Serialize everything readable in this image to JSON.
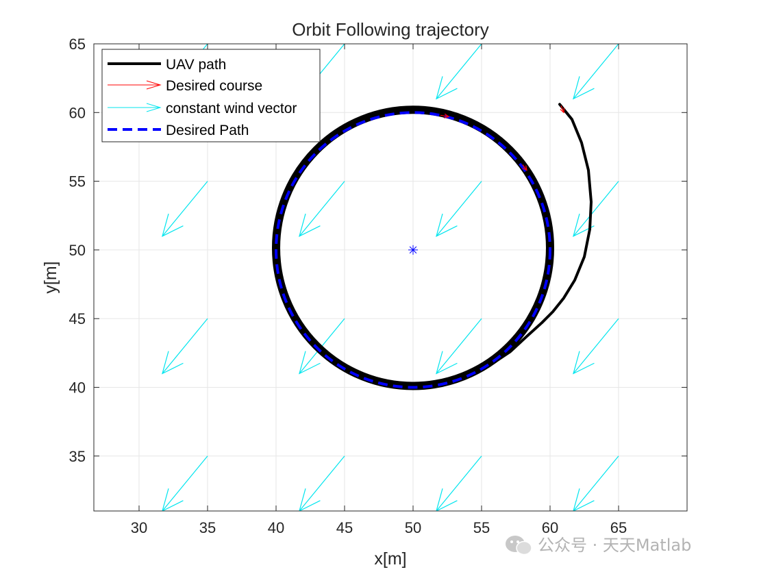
{
  "chart_data": {
    "type": "line",
    "title": "Orbit Following trajectory",
    "xlabel": "x[m]",
    "ylabel": "y[m]",
    "xlim": [
      26.7,
      70
    ],
    "ylim": [
      31,
      65
    ],
    "xticks": [
      "30",
      "35",
      "40",
      "45",
      "50",
      "55",
      "60",
      "65"
    ],
    "yticks": [
      "35",
      "40",
      "45",
      "50",
      "55",
      "60",
      "65"
    ],
    "grid": true,
    "legend_placement": "top-left",
    "legend": [
      "UAV path",
      "Desired course",
      "constant wind vector",
      "Desired Path"
    ],
    "colors": {
      "uav_path": "#000000",
      "desired_course": "#ff0000",
      "wind": "#00e5ee",
      "desired_path": "#0000ff",
      "center": "#0000ff"
    },
    "desired_path": {
      "center": [
        50,
        50
      ],
      "radius": 10
    },
    "orbit_center": [
      50,
      50
    ],
    "uav_path_approach": [
      [
        60.7,
        60.6
      ],
      [
        61.6,
        59.5
      ],
      [
        62.3,
        57.8
      ],
      [
        62.8,
        55.8
      ],
      [
        63.0,
        53.5
      ],
      [
        62.9,
        51.5
      ],
      [
        62.5,
        49.5
      ],
      [
        61.8,
        47.8
      ],
      [
        61.0,
        46.5
      ],
      [
        60.2,
        45.5
      ],
      [
        59.4,
        44.7
      ],
      [
        58.4,
        43.8
      ],
      [
        57.1,
        42.6
      ],
      [
        55.6,
        41.6
      ],
      [
        53.8,
        40.8
      ],
      [
        52.0,
        40.3
      ],
      [
        50.0,
        40.0
      ]
    ],
    "uav_orbit_band": {
      "inner_radius": 9.7,
      "outer_radius": 10.3
    },
    "wind_vector": {
      "dx": -3.3,
      "dy": -4.0,
      "head": "filled arrowhead"
    },
    "wind_origins": [
      [
        35,
        65
      ],
      [
        45,
        65
      ],
      [
        55,
        65
      ],
      [
        65,
        65
      ],
      [
        35,
        55
      ],
      [
        45,
        55
      ],
      [
        55,
        55
      ],
      [
        65,
        55
      ],
      [
        35,
        45
      ],
      [
        45,
        45
      ],
      [
        55,
        45
      ],
      [
        65,
        45
      ],
      [
        35,
        35
      ],
      [
        45,
        35
      ],
      [
        55,
        35
      ],
      [
        65,
        35
      ]
    ],
    "desired_course_arrows": [
      {
        "from": [
          60.8,
          60.5
        ],
        "to": [
          61.0,
          60.0
        ]
      },
      {
        "from": [
          52.0,
          59.8
        ],
        "to": [
          52.6,
          59.7
        ]
      },
      {
        "from": [
          58.0,
          56.2
        ],
        "to": [
          58.3,
          55.8
        ]
      }
    ]
  },
  "watermark": "公众号 · 天天Matlab"
}
